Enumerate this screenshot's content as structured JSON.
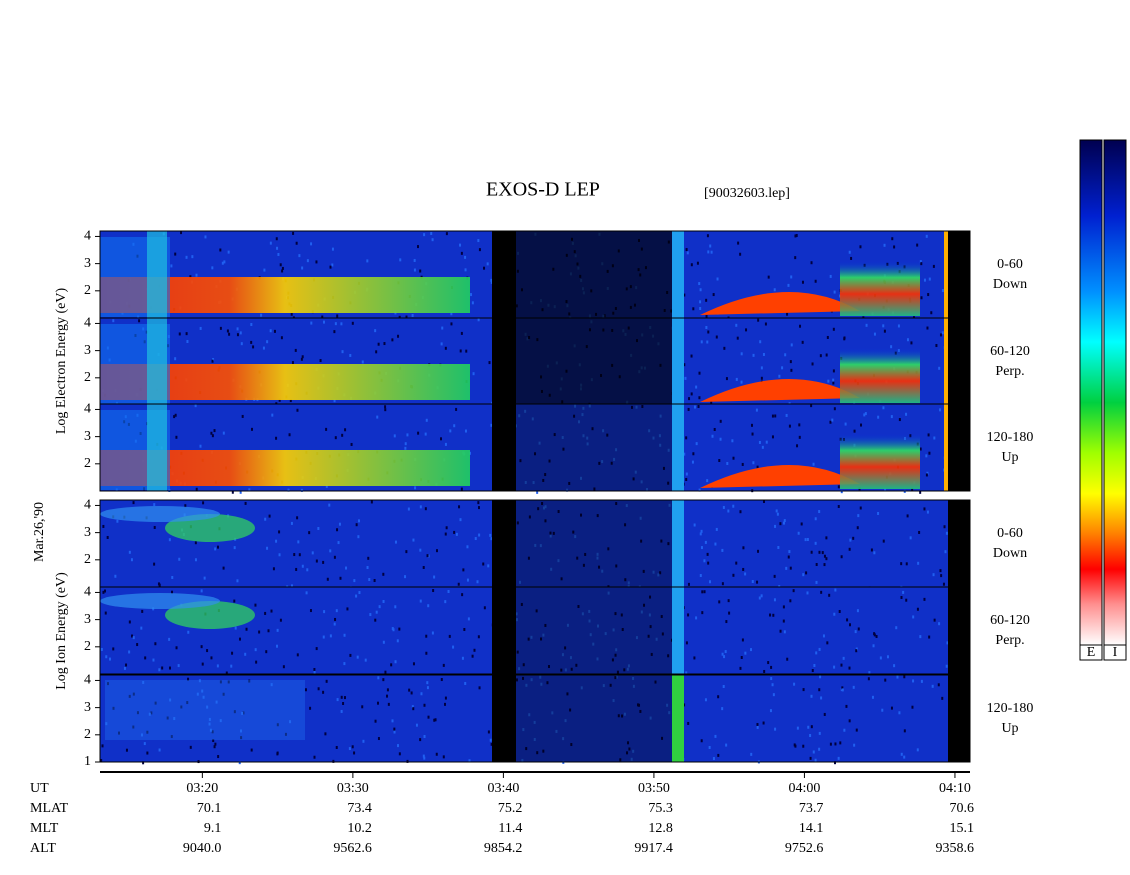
{
  "chart_data": {
    "type": "spectrogram",
    "title": "EXOS-D LEP",
    "subtitle": "[90032603.lep]",
    "date_label": "Mar.26,'90",
    "xlim": [
      13.2,
      71
    ],
    "xticks": [
      {
        "value": 20,
        "label": "03:20"
      },
      {
        "value": 30,
        "label": "03:30"
      },
      {
        "value": 40,
        "label": "03:40"
      },
      {
        "value": 50,
        "label": "03:50"
      },
      {
        "value": 60,
        "label": "04:00"
      },
      {
        "value": 70,
        "label": "04:10"
      }
    ],
    "x_label": "UT",
    "groups": [
      {
        "ylabel": "Log Electron Energy (eV)",
        "panels": [
          {
            "label": [
              "0-60",
              "Down"
            ],
            "ylim": [
              1,
              4.2
            ],
            "yticks": [
              2,
              3,
              4
            ]
          },
          {
            "label": [
              "60-120",
              "Perp."
            ],
            "ylim": [
              1,
              4.2
            ],
            "yticks": [
              2,
              3,
              4
            ]
          },
          {
            "label": [
              "120-180",
              "Up"
            ],
            "ylim": [
              1,
              4.2
            ],
            "yticks": [
              2,
              3,
              4
            ]
          }
        ]
      },
      {
        "ylabel": "Log Ion Energy (eV)",
        "panels": [
          {
            "label": [
              "0-60",
              "Down"
            ],
            "ylim": [
              1,
              4.2
            ],
            "yticks": [
              2,
              3,
              4
            ]
          },
          {
            "label": [
              "60-120",
              "Perp."
            ],
            "ylim": [
              1,
              4.2
            ],
            "yticks": [
              2,
              3,
              4
            ]
          },
          {
            "label": [
              "120-180",
              "Up"
            ],
            "ylim": [
              1,
              4.2
            ],
            "yticks": [
              1,
              2,
              3,
              4
            ]
          }
        ]
      }
    ],
    "orbit": [
      {
        "name": "MLAT",
        "values": [
          70.1,
          73.4,
          75.2,
          75.3,
          73.7,
          70.6
        ]
      },
      {
        "name": "MLT",
        "values": [
          9.1,
          10.2,
          11.4,
          12.8,
          14.1,
          15.1
        ]
      },
      {
        "name": "ALT",
        "values": [
          9040,
          9562.6,
          9854.2,
          9917.4,
          9752.6,
          9358.6
        ],
        "value_labels": [
          "9040.0",
          "9562.6",
          "9854.2",
          "9917.4",
          "9752.6",
          "9358.6"
        ]
      }
    ],
    "colorbar_labels": [
      "E",
      "I"
    ]
  }
}
